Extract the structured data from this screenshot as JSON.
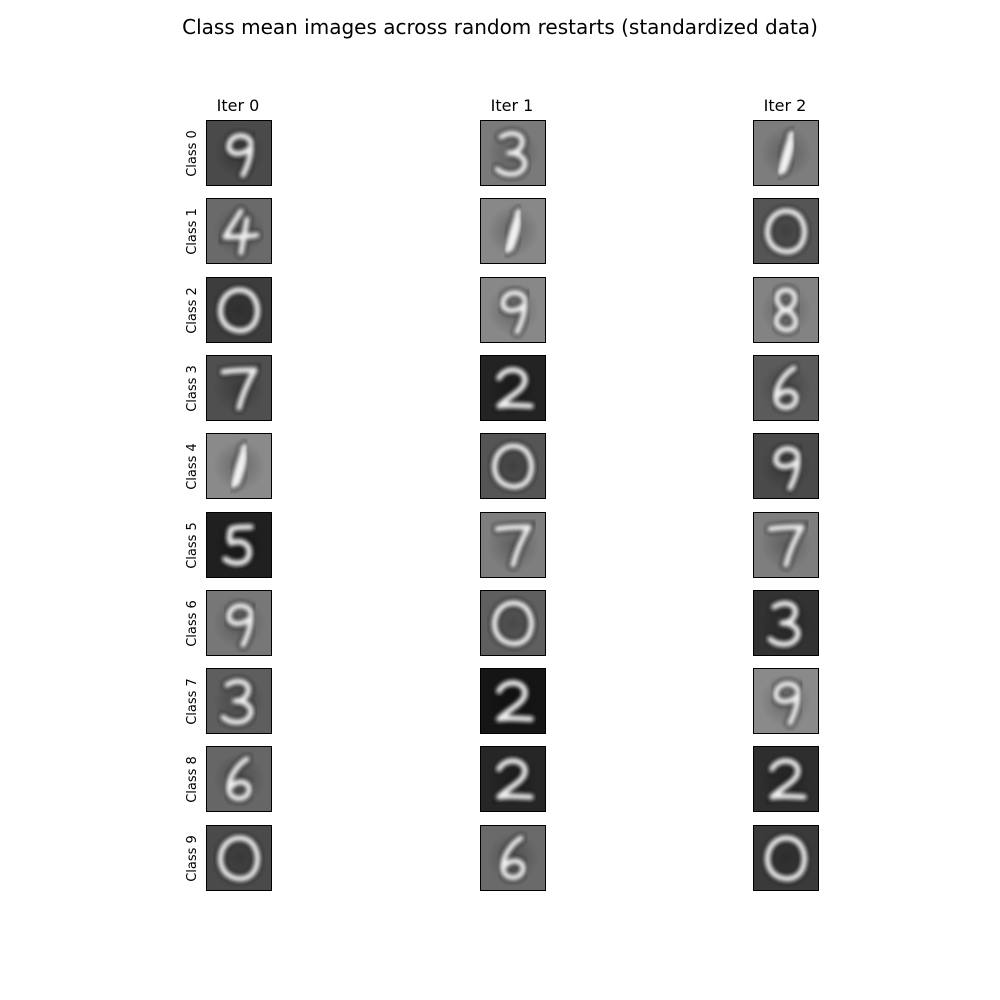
{
  "title": "Class mean images across random restarts (standardized data)",
  "columns": [
    "Iter 0",
    "Iter 1",
    "Iter 2"
  ],
  "rows": [
    "Class 0",
    "Class 1",
    "Class 2",
    "Class 3",
    "Class 4",
    "Class 5",
    "Class 6",
    "Class 7",
    "Class 8",
    "Class 9"
  ],
  "grid": [
    [
      {
        "digit": "9",
        "bg": "#4a4a4a"
      },
      {
        "digit": "3",
        "bg": "#7a7a7a"
      },
      {
        "digit": "1",
        "bg": "#7d7d7d"
      }
    ],
    [
      {
        "digit": "4",
        "bg": "#6a6a6a"
      },
      {
        "digit": "1",
        "bg": "#888888"
      },
      {
        "digit": "0",
        "bg": "#555555"
      }
    ],
    [
      {
        "digit": "0",
        "bg": "#3d3d3d"
      },
      {
        "digit": "9",
        "bg": "#888888"
      },
      {
        "digit": "8",
        "bg": "#838383"
      }
    ],
    [
      {
        "digit": "7",
        "bg": "#4f4f4f"
      },
      {
        "digit": "2",
        "bg": "#232323"
      },
      {
        "digit": "6",
        "bg": "#5b5b5b"
      }
    ],
    [
      {
        "digit": "1",
        "bg": "#8a8a8a"
      },
      {
        "digit": "0",
        "bg": "#555555"
      },
      {
        "digit": "9",
        "bg": "#4a4a4a"
      }
    ],
    [
      {
        "digit": "5",
        "bg": "#202020"
      },
      {
        "digit": "7",
        "bg": "#7e7e7e"
      },
      {
        "digit": "7",
        "bg": "#7e7e7e"
      }
    ],
    [
      {
        "digit": "9",
        "bg": "#777777"
      },
      {
        "digit": "0",
        "bg": "#5f5f5f"
      },
      {
        "digit": "3",
        "bg": "#323232"
      }
    ],
    [
      {
        "digit": "3",
        "bg": "#5e5e5e"
      },
      {
        "digit": "2",
        "bg": "#151515"
      },
      {
        "digit": "9",
        "bg": "#8a8a8a"
      }
    ],
    [
      {
        "digit": "6",
        "bg": "#666666"
      },
      {
        "digit": "2",
        "bg": "#262626"
      },
      {
        "digit": "2",
        "bg": "#2e2e2e"
      }
    ],
    [
      {
        "digit": "0",
        "bg": "#4a4a4a"
      },
      {
        "digit": "6",
        "bg": "#6a6a6a"
      },
      {
        "digit": "0",
        "bg": "#3a3a3a"
      }
    ]
  ]
}
